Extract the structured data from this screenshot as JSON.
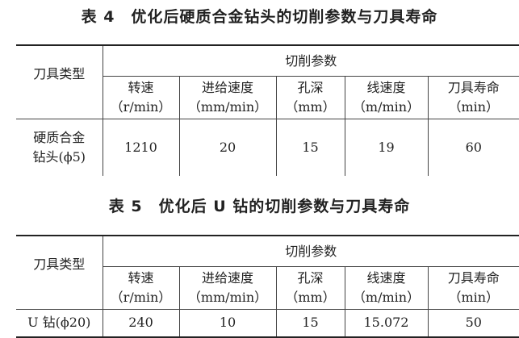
{
  "tables": [
    {
      "caption": "表 4　优化后硬质合金钻头的切削参数与刀具寿命",
      "tool_type_header": "刀具类型",
      "group_header": "切削参数",
      "columns": [
        {
          "name": "转速",
          "unit": "（r/min）"
        },
        {
          "name": "进给速度",
          "unit": "（mm/min）"
        },
        {
          "name": "孔深",
          "unit": "（mm）"
        },
        {
          "name": "线速度",
          "unit": "（m/min）"
        },
        {
          "name": "刀具寿命",
          "unit": "（min）"
        }
      ],
      "row": {
        "tool_line1": "硬质合金",
        "tool_line2": "钻头(ϕ5)",
        "values": [
          "1210",
          "20",
          "15",
          "19",
          "60"
        ]
      }
    },
    {
      "caption": "表 5　优化后 U 钻的切削参数与刀具寿命",
      "tool_type_header": "刀具类型",
      "group_header": "切削参数",
      "columns": [
        {
          "name": "转速",
          "unit": "（r/min）"
        },
        {
          "name": "进给速度",
          "unit": "（mm/min）"
        },
        {
          "name": "孔深",
          "unit": "（mm）"
        },
        {
          "name": "线速度",
          "unit": "（m/min）"
        },
        {
          "name": "刀具寿命",
          "unit": "（min）"
        }
      ],
      "row": {
        "tool_line1": "U 钻(ϕ20)",
        "tool_line2": "",
        "values": [
          "240",
          "10",
          "15",
          "15.072",
          "50"
        ]
      }
    }
  ]
}
